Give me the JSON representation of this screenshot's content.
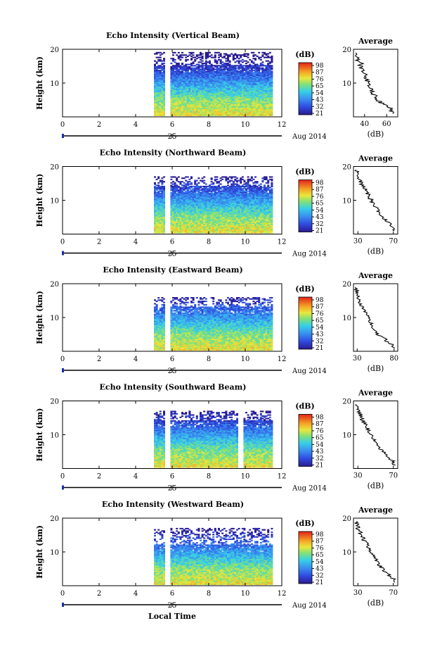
{
  "figure": {
    "xaxis_label": "Local Time",
    "date_label": "Aug 2014",
    "day_label": "25",
    "colorbar_unit": "(dB)",
    "avg_title": "Average",
    "avg_xlabel": "(dB)",
    "height_label": "Height (km)"
  },
  "chart_data": [
    {
      "type": "heatmap",
      "title": "Echo Intensity (Vertical Beam)",
      "xlabel": "Local Time",
      "ylabel": "Height (km)",
      "xlim": [
        0,
        12
      ],
      "ylim": [
        0,
        20
      ],
      "xticks": [
        0,
        2,
        4,
        6,
        8,
        10,
        12
      ],
      "yticks": [
        10,
        20
      ],
      "data_start_hour": 5.0,
      "data_end_hour": 11.5,
      "gap_hours": [
        [
          5.6,
          5.9
        ]
      ],
      "extra_gaps": [],
      "top_height_km": 19,
      "dense_top_km": 15,
      "colorbar": {
        "label": "(dB)",
        "ticks": [
          21,
          32,
          43,
          54,
          65,
          76,
          87,
          98
        ]
      },
      "average_profile": {
        "title": "Average",
        "xlabel": "(dB)",
        "xlim": [
          30,
          70
        ],
        "xticks": [
          40,
          60
        ],
        "heights_km": [
          1,
          2,
          3,
          4,
          5,
          6,
          7,
          8,
          9,
          10,
          11,
          12,
          13,
          14,
          15,
          16,
          17,
          18,
          19
        ],
        "values_db": [
          66,
          64,
          62,
          55,
          52,
          50,
          48,
          46,
          45,
          43,
          42,
          42,
          38,
          37,
          36,
          38,
          33,
          34,
          32
        ]
      }
    },
    {
      "type": "heatmap",
      "title": "Echo Intensity (Northward Beam)",
      "xlabel": "Local Time",
      "ylabel": "Height (km)",
      "xlim": [
        0,
        12
      ],
      "ylim": [
        0,
        20
      ],
      "xticks": [
        0,
        2,
        4,
        6,
        8,
        10,
        12
      ],
      "yticks": [
        10,
        20
      ],
      "data_start_hour": 5.0,
      "data_end_hour": 11.5,
      "gap_hours": [
        [
          5.6,
          5.9
        ]
      ],
      "extra_gaps": [],
      "top_height_km": 17,
      "dense_top_km": 14,
      "colorbar": {
        "label": "(dB)",
        "ticks": [
          21,
          32,
          43,
          54,
          65,
          76,
          87,
          98
        ]
      },
      "average_profile": {
        "title": "Average",
        "xlabel": "(dB)",
        "xlim": [
          25,
          75
        ],
        "xticks": [
          30,
          70
        ],
        "heights_km": [
          1,
          2,
          3,
          4,
          5,
          6,
          7,
          8,
          9,
          10,
          11,
          12,
          13,
          14,
          15,
          16,
          17,
          18,
          19
        ],
        "values_db": [
          72,
          70,
          67,
          62,
          58,
          55,
          52,
          50,
          47,
          45,
          43,
          41,
          38,
          36,
          34,
          32,
          30,
          29,
          28
        ]
      }
    },
    {
      "type": "heatmap",
      "title": "Echo Intensity (Eastward Beam)",
      "xlabel": "Local Time",
      "ylabel": "Height (km)",
      "xlim": [
        0,
        12
      ],
      "ylim": [
        0,
        20
      ],
      "xticks": [
        0,
        2,
        4,
        6,
        8,
        10,
        12
      ],
      "yticks": [
        10,
        20
      ],
      "data_start_hour": 5.0,
      "data_end_hour": 11.5,
      "gap_hours": [
        [
          5.6,
          5.9
        ]
      ],
      "extra_gaps": [],
      "top_height_km": 16,
      "dense_top_km": 13,
      "colorbar": {
        "label": "(dB)",
        "ticks": [
          21,
          32,
          43,
          54,
          65,
          76,
          87,
          98
        ]
      },
      "average_profile": {
        "title": "Average",
        "xlabel": "(dB)",
        "xlim": [
          25,
          85
        ],
        "xticks": [
          30,
          80
        ],
        "heights_km": [
          1,
          2,
          3,
          4,
          5,
          6,
          7,
          8,
          9,
          10,
          11,
          12,
          13,
          14,
          15,
          16,
          17,
          18,
          19
        ],
        "values_db": [
          80,
          78,
          70,
          66,
          58,
          54,
          52,
          50,
          47,
          45,
          43,
          40,
          37,
          35,
          33,
          31,
          30,
          29,
          28
        ]
      }
    },
    {
      "type": "heatmap",
      "title": "Echo Intensity (Southward Beam)",
      "xlabel": "Local Time",
      "ylabel": "Height (km)",
      "xlim": [
        0,
        12
      ],
      "ylim": [
        0,
        20
      ],
      "xticks": [
        0,
        2,
        4,
        6,
        8,
        10,
        12
      ],
      "yticks": [
        10,
        20
      ],
      "data_start_hour": 5.0,
      "data_end_hour": 11.5,
      "gap_hours": [
        [
          5.6,
          5.9
        ]
      ],
      "extra_gaps": [
        [
          9.6,
          9.9
        ]
      ],
      "top_height_km": 17,
      "dense_top_km": 14,
      "colorbar": {
        "label": "(dB)",
        "ticks": [
          21,
          32,
          43,
          54,
          65,
          76,
          87,
          98
        ]
      },
      "average_profile": {
        "title": "Average",
        "xlabel": "(dB)",
        "xlim": [
          25,
          75
        ],
        "xticks": [
          30,
          70
        ],
        "heights_km": [
          1,
          2,
          3,
          4,
          5,
          6,
          7,
          8,
          9,
          10,
          11,
          12,
          13,
          14,
          15,
          16,
          17,
          18,
          19
        ],
        "values_db": [
          72,
          70,
          66,
          62,
          58,
          55,
          52,
          50,
          46,
          44,
          42,
          40,
          38,
          36,
          34,
          33,
          31,
          29,
          28
        ]
      }
    },
    {
      "type": "heatmap",
      "title": "Echo Intensity (Westward Beam)",
      "xlabel": "Local Time",
      "ylabel": "Height (km)",
      "xlim": [
        0,
        12
      ],
      "ylim": [
        0,
        20
      ],
      "xticks": [
        0,
        2,
        4,
        6,
        8,
        10,
        12
      ],
      "yticks": [
        10,
        20
      ],
      "data_start_hour": 5.0,
      "data_end_hour": 11.5,
      "gap_hours": [
        [
          5.6,
          5.9
        ]
      ],
      "extra_gaps": [],
      "top_height_km": 17,
      "dense_top_km": 12,
      "colorbar": {
        "label": "(dB)",
        "ticks": [
          21,
          32,
          43,
          54,
          65,
          76,
          87,
          98
        ]
      },
      "average_profile": {
        "title": "Average",
        "xlabel": "(dB)",
        "xlim": [
          25,
          75
        ],
        "xticks": [
          30,
          70
        ],
        "heights_km": [
          1,
          2,
          3,
          4,
          5,
          6,
          7,
          8,
          9,
          10,
          11,
          12,
          13,
          14,
          15,
          16,
          17,
          18,
          19
        ],
        "values_db": [
          72,
          70,
          66,
          62,
          58,
          55,
          52,
          50,
          47,
          45,
          43,
          41,
          38,
          36,
          34,
          32,
          30,
          29,
          28
        ]
      }
    }
  ]
}
